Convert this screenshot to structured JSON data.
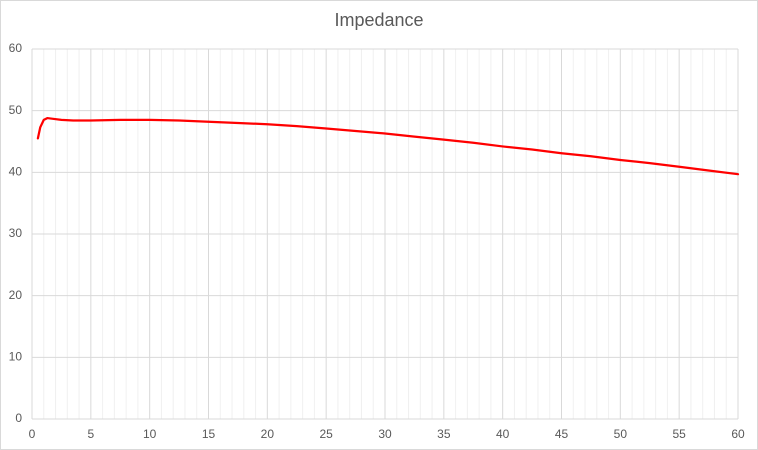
{
  "chart_data": {
    "type": "line",
    "title": "Impedance",
    "x": [
      0.5,
      0.7,
      1.0,
      1.3,
      1.7,
      2.5,
      3.5,
      5,
      7.5,
      10,
      12.5,
      15,
      17.5,
      20,
      22.5,
      25,
      27.5,
      30,
      32.5,
      35,
      37.5,
      40,
      42.5,
      45,
      47.5,
      50,
      52.5,
      55,
      57.5,
      60
    ],
    "values": [
      45.5,
      47.3,
      48.5,
      48.8,
      48.7,
      48.5,
      48.4,
      48.4,
      48.5,
      48.5,
      48.4,
      48.2,
      48.0,
      47.8,
      47.5,
      47.1,
      46.7,
      46.3,
      45.8,
      45.3,
      44.8,
      44.2,
      43.7,
      43.1,
      42.6,
      42.0,
      41.5,
      40.9,
      40.3,
      39.7
    ],
    "color": "#ff0000",
    "xlim": [
      0,
      60
    ],
    "xticks": [
      0,
      5,
      10,
      15,
      20,
      25,
      30,
      35,
      40,
      45,
      50,
      55,
      60
    ],
    "xminorticks": [
      1,
      2,
      3,
      4,
      6,
      7,
      8,
      9,
      11,
      12,
      13,
      14,
      16,
      17,
      18,
      19,
      21,
      22,
      23,
      24,
      26,
      27,
      28,
      29,
      31,
      32,
      33,
      34,
      36,
      37,
      38,
      39,
      41,
      42,
      43,
      44,
      46,
      47,
      48,
      49,
      51,
      52,
      53,
      54,
      56,
      57,
      58,
      59
    ],
    "ylim": [
      0,
      60
    ],
    "yticks": [
      0,
      10,
      20,
      30,
      40,
      50,
      60
    ],
    "grid": true
  }
}
